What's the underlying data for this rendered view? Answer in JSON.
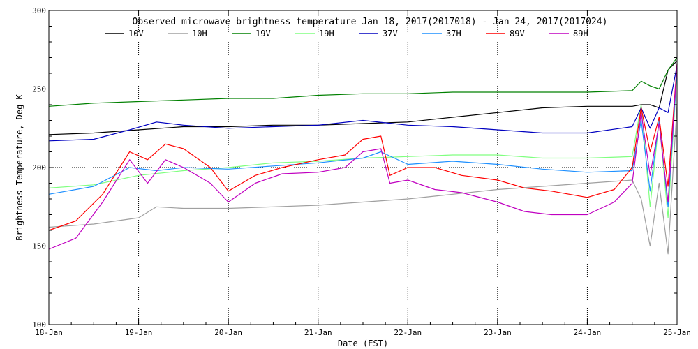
{
  "chart_data": {
    "type": "line",
    "title": "Observed microwave brightness temperature Jan 18, 2017(2017018) - Jan 24, 2017(2017024)",
    "xlabel": "Date (EST)",
    "ylabel": "Brightness Temperature, Deg K",
    "xlim": [
      0,
      7
    ],
    "ylim": [
      100,
      300
    ],
    "x_ticks": [
      {
        "x": 0,
        "label": "18-Jan"
      },
      {
        "x": 1,
        "label": "19-Jan"
      },
      {
        "x": 2,
        "label": "20-Jan"
      },
      {
        "x": 3,
        "label": "21-Jan"
      },
      {
        "x": 4,
        "label": "22-Jan"
      },
      {
        "x": 5,
        "label": "23-Jan"
      },
      {
        "x": 6,
        "label": "24-Jan"
      },
      {
        "x": 7,
        "label": "25-Jan"
      }
    ],
    "y_ticks": [
      {
        "y": 100,
        "label": "100"
      },
      {
        "y": 150,
        "label": "150"
      },
      {
        "y": 200,
        "label": "200"
      },
      {
        "y": 250,
        "label": "250"
      },
      {
        "y": 300,
        "label": "300"
      }
    ],
    "grid": true,
    "legend_position": "top",
    "series": [
      {
        "name": "10V",
        "color": "#000000",
        "x": [
          0,
          0.5,
          1,
          1.5,
          2,
          2.5,
          3,
          3.5,
          4,
          4.5,
          5,
          5.5,
          6,
          6.5,
          6.6,
          6.7,
          6.8,
          6.9,
          7
        ],
        "y": [
          221,
          222,
          224,
          226,
          226,
          227,
          227,
          228,
          229,
          232,
          235,
          238,
          239,
          239,
          240,
          240,
          238,
          262,
          268
        ]
      },
      {
        "name": "10H",
        "color": "#a0a0a0",
        "x": [
          0,
          0.5,
          1,
          1.2,
          1.5,
          2,
          2.5,
          3,
          3.5,
          4,
          4.5,
          5,
          5.5,
          6,
          6.5,
          6.6,
          6.7,
          6.8,
          6.9,
          7
        ],
        "y": [
          162,
          164,
          168,
          175,
          174,
          174,
          175,
          176,
          178,
          180,
          183,
          186,
          188,
          190,
          192,
          180,
          150,
          190,
          145,
          240
        ]
      },
      {
        "name": "19V",
        "color": "#008000",
        "x": [
          0,
          0.5,
          1,
          1.5,
          2,
          2.5,
          3,
          3.5,
          4,
          4.5,
          5,
          5.5,
          6,
          6.5,
          6.6,
          6.7,
          6.8,
          6.9,
          7
        ],
        "y": [
          239,
          241,
          242,
          243,
          244,
          244,
          246,
          247,
          247,
          248,
          248,
          248,
          248,
          249,
          255,
          252,
          250,
          262,
          270
        ]
      },
      {
        "name": "19H",
        "color": "#80ff80",
        "x": [
          0,
          0.5,
          1,
          1.5,
          2,
          2.5,
          3,
          3.5,
          4,
          4.5,
          5,
          5.5,
          6,
          6.5,
          6.6,
          6.7,
          6.8,
          6.9,
          7
        ],
        "y": [
          187,
          189,
          195,
          198,
          200,
          203,
          204,
          206,
          207,
          208,
          208,
          206,
          206,
          207,
          240,
          175,
          230,
          168,
          262
        ]
      },
      {
        "name": "37V",
        "color": "#0000c0",
        "x": [
          0,
          0.5,
          0.9,
          1.2,
          1.5,
          2,
          2.5,
          3,
          3.5,
          4,
          4.5,
          5,
          5.5,
          6,
          6.5,
          6.6,
          6.7,
          6.8,
          6.9,
          7
        ],
        "y": [
          217,
          218,
          224,
          229,
          227,
          225,
          226,
          227,
          230,
          227,
          226,
          224,
          222,
          222,
          226,
          238,
          225,
          238,
          235,
          265
        ]
      },
      {
        "name": "37H",
        "color": "#1e90ff",
        "x": [
          0,
          0.5,
          0.9,
          1.2,
          1.5,
          2,
          2.5,
          3,
          3.5,
          3.7,
          4,
          4.5,
          5,
          5.5,
          6,
          6.5,
          6.6,
          6.7,
          6.8,
          6.9,
          7
        ],
        "y": [
          183,
          188,
          200,
          198,
          200,
          199,
          201,
          203,
          206,
          210,
          202,
          204,
          202,
          199,
          197,
          198,
          230,
          185,
          230,
          175,
          263
        ]
      },
      {
        "name": "89V",
        "color": "#ff0000",
        "x": [
          0,
          0.3,
          0.6,
          0.9,
          1.1,
          1.3,
          1.5,
          1.8,
          2,
          2.3,
          2.6,
          3,
          3.3,
          3.5,
          3.7,
          3.8,
          4,
          4.3,
          4.6,
          5,
          5.3,
          5.6,
          6,
          6.3,
          6.5,
          6.6,
          6.7,
          6.8,
          6.9,
          7
        ],
        "y": [
          160,
          166,
          183,
          210,
          205,
          215,
          212,
          200,
          185,
          195,
          200,
          205,
          208,
          218,
          220,
          195,
          200,
          200,
          195,
          192,
          187,
          185,
          181,
          186,
          200,
          238,
          210,
          232,
          188,
          266
        ]
      },
      {
        "name": "89H",
        "color": "#c000c0",
        "x": [
          0,
          0.3,
          0.6,
          0.9,
          1.1,
          1.3,
          1.5,
          1.8,
          2,
          2.3,
          2.6,
          3,
          3.3,
          3.5,
          3.7,
          3.8,
          4,
          4.3,
          4.6,
          5,
          5.3,
          5.6,
          6,
          6.3,
          6.5,
          6.6,
          6.7,
          6.8,
          6.9,
          7
        ],
        "y": [
          148,
          155,
          178,
          205,
          190,
          205,
          200,
          190,
          178,
          190,
          196,
          197,
          200,
          210,
          212,
          190,
          192,
          186,
          184,
          178,
          172,
          170,
          170,
          178,
          190,
          235,
          195,
          228,
          178,
          266
        ]
      }
    ]
  }
}
